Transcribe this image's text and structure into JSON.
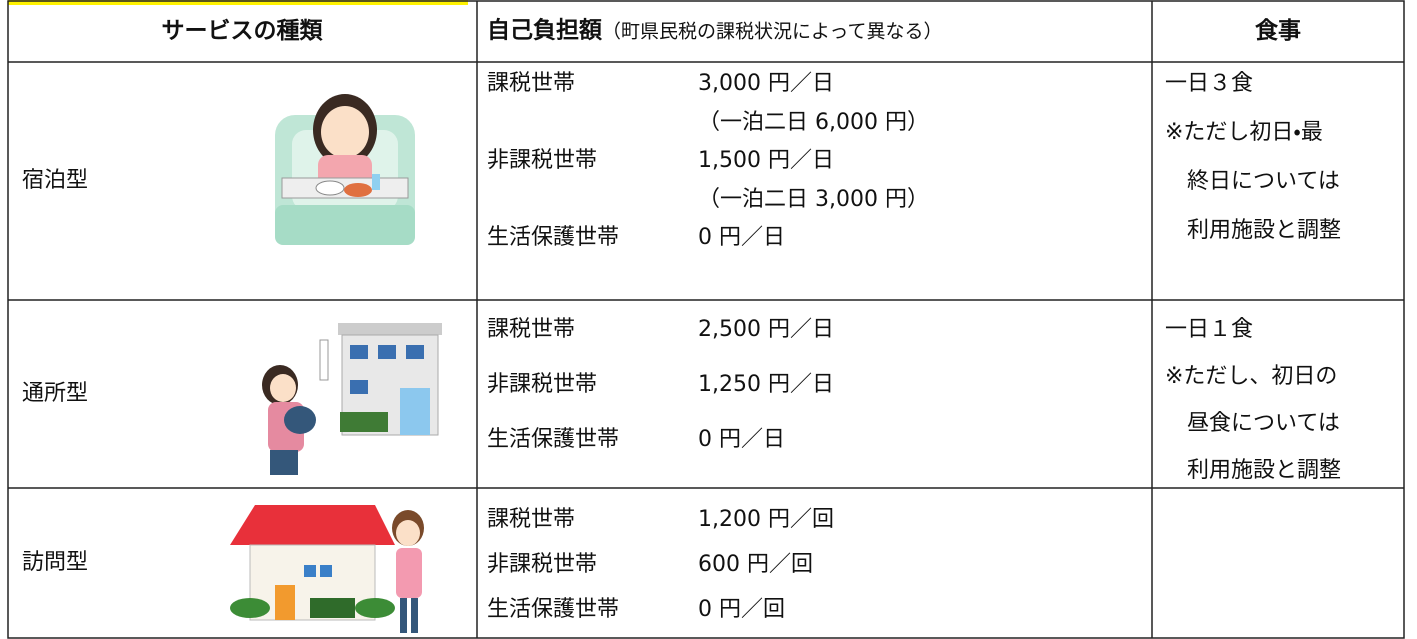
{
  "table": {
    "header": {
      "type": "サービスの種類",
      "cost_title": "自己負担額",
      "cost_note": "（町県民税の課税状況によって異なる）",
      "meal": "食事"
    },
    "rows": [
      {
        "type": "宿泊型",
        "costs": [
          {
            "label": "課税世帯",
            "amount": "3,000 円／日"
          },
          {
            "amount": "（一泊二日 6,000 円）"
          },
          {
            "label": "非課税世帯",
            "amount": "1,500 円／日"
          },
          {
            "amount": "（一泊二日 3,000 円）"
          },
          {
            "label": "生活保護世帯",
            "amount": "0 円／日"
          }
        ],
        "meal": [
          "一日３食",
          "※ただし初日・最",
          "終日については",
          "利用施設と調整"
        ]
      },
      {
        "type": "通所型",
        "costs": [
          {
            "label": "課税世帯",
            "amount": "2,500 円／日"
          },
          {
            "label": "非課税世帯",
            "amount": "1,250 円／日"
          },
          {
            "label": "生活保護世帯",
            "amount": "0 円／日"
          }
        ],
        "meal": [
          "一日１食",
          "※ただし、初日の",
          "昼食については",
          "利用施設と調整"
        ]
      },
      {
        "type": "訪問型",
        "costs": [
          {
            "label": "課税世帯",
            "amount": "1,200 円／回"
          },
          {
            "label": "非課税世帯",
            "amount": "600 円／回"
          },
          {
            "label": "生活保護世帯",
            "amount": "0 円／回"
          }
        ]
      }
    ]
  }
}
